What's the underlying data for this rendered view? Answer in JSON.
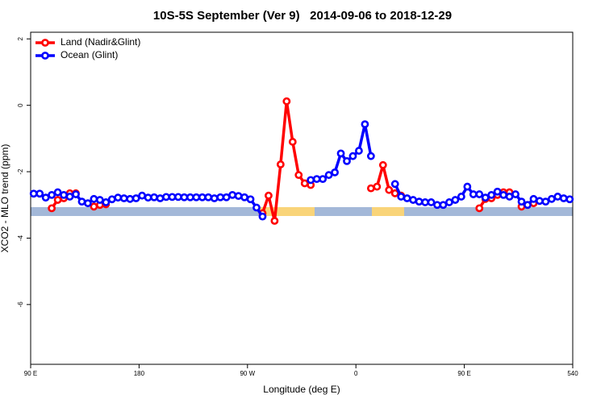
{
  "chart_data": {
    "type": "line",
    "title": "10S-5S September (Ver 9)   2014-09-06 to 2018-12-29",
    "x_label": "Longitude (deg E)",
    "y_label": "XCO2 - MLO trend (ppm)",
    "xlim": [
      90,
      540
    ],
    "ylim": [
      -7.8,
      2.2
    ],
    "xticks": [
      {
        "value": 90,
        "label": "90 E"
      },
      180,
      {
        "value": 270,
        "label": "90 W"
      },
      {
        "value": 360,
        "label": "0"
      },
      {
        "value": 450,
        "label": "90 E"
      },
      540
    ],
    "yticks": [
      2,
      0,
      -2,
      -4,
      -6
    ],
    "legend_position": "top-left",
    "x": [
      92.5,
      97.5,
      102.5,
      107.5,
      112.5,
      117.5,
      122.5,
      127.5,
      132.5,
      137.5,
      142.5,
      147.5,
      152.5,
      157.5,
      162.5,
      167.5,
      172.5,
      177.5,
      182.5,
      187.5,
      192.5,
      197.5,
      202.5,
      207.5,
      212.5,
      217.5,
      222.5,
      227.5,
      232.5,
      237.5,
      242.5,
      247.5,
      252.5,
      257.5,
      262.5,
      267.5,
      272.5,
      277.5,
      282.5,
      287.5,
      292.5,
      297.5,
      302.5,
      307.5,
      312.5,
      317.5,
      322.5,
      327.5,
      332.5,
      337.5,
      342.5,
      347.5,
      352.5,
      357.5,
      362.5,
      367.5,
      372.5,
      377.5,
      382.5,
      387.5,
      392.5,
      397.5,
      402.5,
      407.5,
      412.5,
      417.5,
      422.5,
      427.5,
      432.5,
      437.5,
      442.5,
      447.5,
      452.5,
      457.5,
      462.5,
      467.5,
      472.5,
      477.5,
      482.5,
      487.5,
      492.5,
      497.5,
      502.5,
      507.5,
      512.5,
      517.5,
      522.5,
      527.5,
      532.5,
      537.5
    ],
    "series": [
      {
        "name": "Land (Nadir&Glint)",
        "color": "#ff0000",
        "values": [
          null,
          null,
          null,
          -3.1,
          -2.85,
          -2.8,
          -2.65,
          -2.65,
          null,
          null,
          -3.05,
          -3.0,
          -2.98,
          null,
          null,
          null,
          null,
          null,
          null,
          null,
          null,
          null,
          null,
          null,
          null,
          null,
          null,
          null,
          null,
          null,
          null,
          null,
          null,
          null,
          null,
          null,
          null,
          null,
          -3.25,
          -2.72,
          -3.48,
          -1.78,
          0.12,
          -1.1,
          -2.1,
          -2.35,
          -2.4,
          null,
          null,
          null,
          null,
          null,
          null,
          null,
          null,
          null,
          -2.5,
          -2.45,
          -1.8,
          -2.55,
          -2.65,
          -2.72,
          null,
          null,
          null,
          null,
          null,
          null,
          null,
          null,
          null,
          null,
          null,
          null,
          -3.1,
          -2.82,
          -2.8,
          -2.7,
          -2.62,
          -2.62,
          null,
          -3.05,
          -3.0,
          -2.95,
          null,
          null,
          null,
          null,
          null,
          null
        ]
      },
      {
        "name": "Ocean (Glint)",
        "color": "#0000ff",
        "values": [
          -2.66,
          -2.66,
          -2.78,
          -2.7,
          -2.62,
          -2.7,
          -2.75,
          -2.68,
          -2.9,
          -2.95,
          -2.82,
          -2.85,
          -2.92,
          -2.83,
          -2.78,
          -2.8,
          -2.82,
          -2.8,
          -2.72,
          -2.78,
          -2.77,
          -2.8,
          -2.76,
          -2.76,
          -2.76,
          -2.77,
          -2.77,
          -2.77,
          -2.77,
          -2.77,
          -2.8,
          -2.77,
          -2.77,
          -2.7,
          -2.73,
          -2.77,
          -2.83,
          -3.08,
          -3.35,
          null,
          null,
          null,
          null,
          null,
          null,
          null,
          -2.25,
          -2.22,
          -2.22,
          -2.1,
          -2.02,
          -1.45,
          -1.68,
          -1.53,
          -1.37,
          -0.57,
          -1.53,
          null,
          null,
          null,
          -2.37,
          -2.75,
          -2.8,
          -2.85,
          -2.9,
          -2.92,
          -2.92,
          -3.0,
          -3.0,
          -2.92,
          -2.85,
          -2.75,
          -2.45,
          -2.68,
          -2.68,
          -2.78,
          -2.7,
          -2.6,
          -2.7,
          -2.75,
          -2.68,
          -2.9,
          -3.0,
          -2.82,
          -2.88,
          -2.9,
          -2.82,
          -2.75,
          -2.8,
          -2.83
        ]
      }
    ]
  }
}
